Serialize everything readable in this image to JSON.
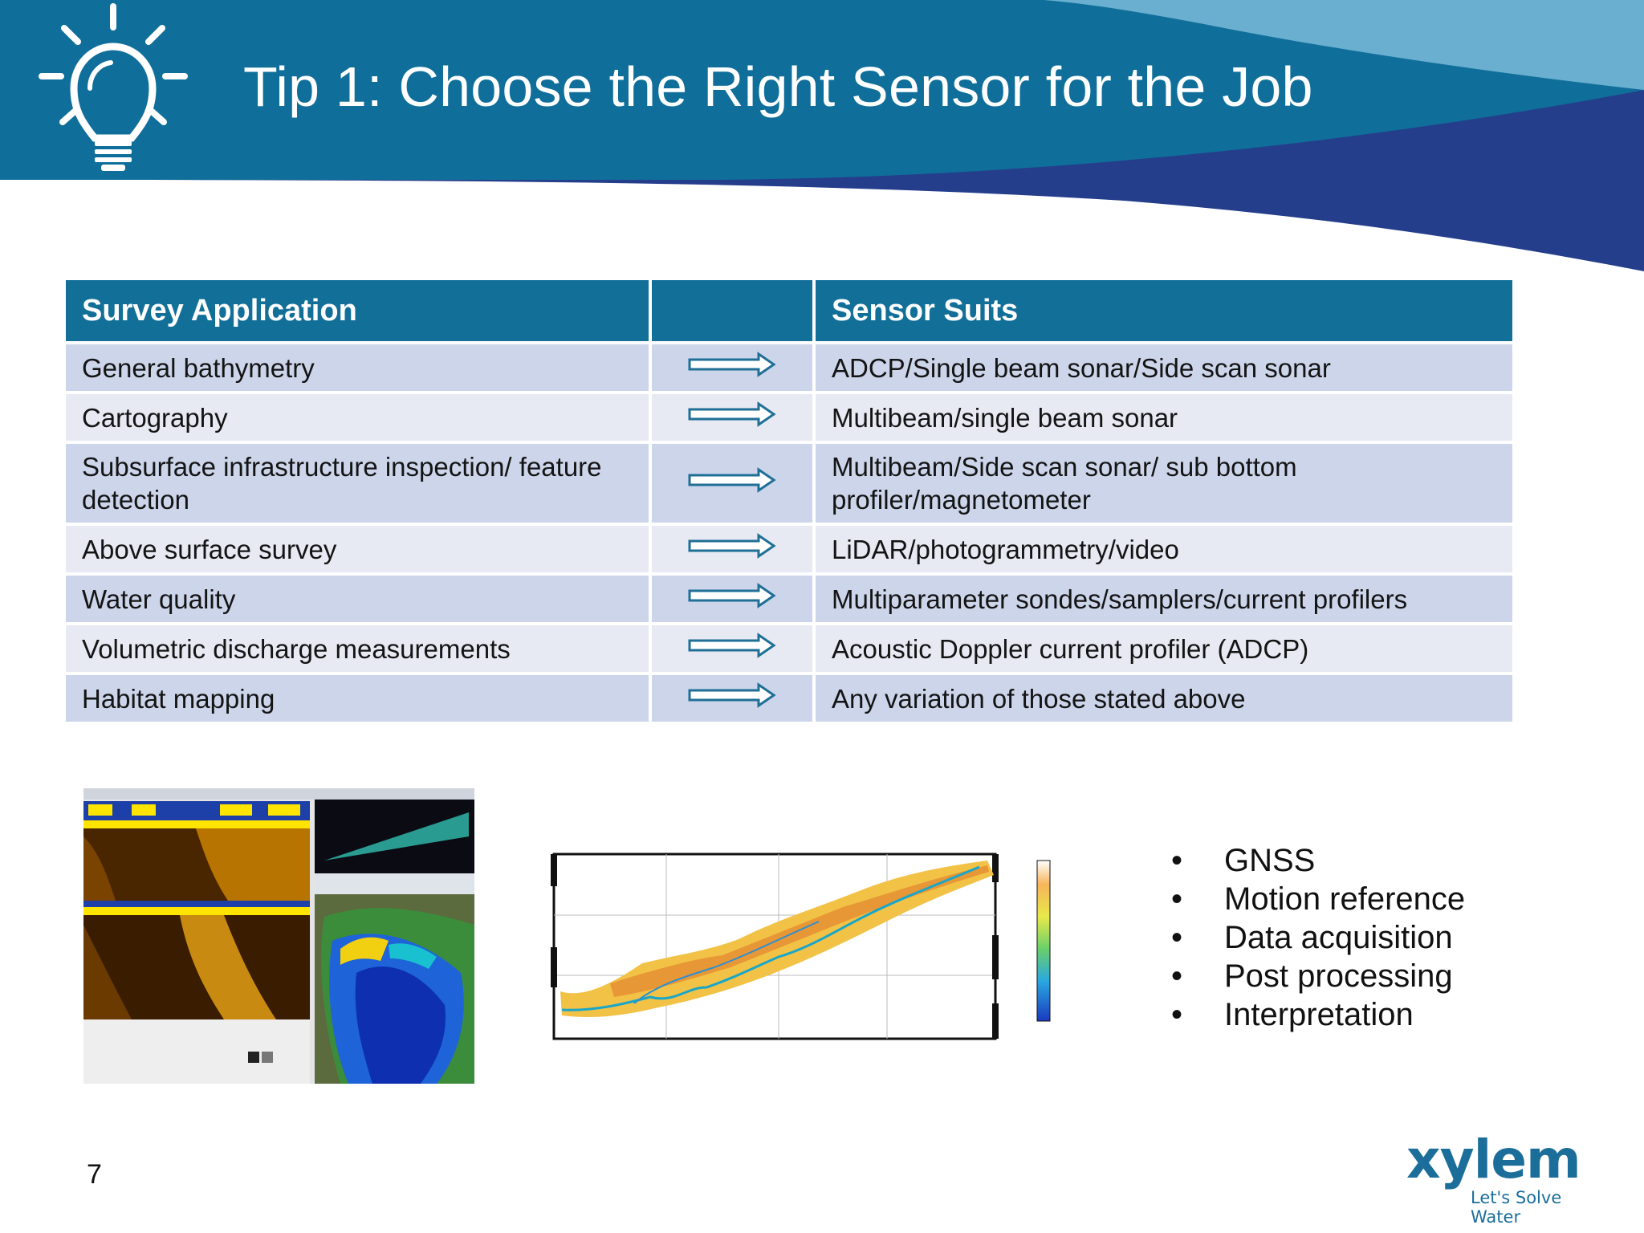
{
  "slide": {
    "title": "Tip 1: Choose the Right Sensor for the Job",
    "page_number": "7",
    "colors": {
      "header_dark": "#0f6f9a",
      "header_light": "#6aaed0",
      "navy_swoosh": "#243e8c",
      "table_header": "#116f98",
      "row_odd": "#ccd5ea",
      "row_even": "#e7eaf3"
    }
  },
  "table": {
    "headers": [
      "Survey Application",
      "",
      "Sensor Suits"
    ],
    "rows": [
      {
        "application": "General bathymetry",
        "sensor": "ADCP/Single beam sonar/Side scan sonar"
      },
      {
        "application": "Cartography",
        "sensor": "Multibeam/single beam sonar"
      },
      {
        "application": "Subsurface infrastructure inspection/ feature detection",
        "sensor": "Multibeam/Side scan sonar/ sub bottom profiler/magnetometer"
      },
      {
        "application": "Above surface survey",
        "sensor": "LiDAR/photogrammetry/video"
      },
      {
        "application": "Water quality",
        "sensor": "Multiparameter sondes/samplers/current profilers"
      },
      {
        "application": "Volumetric discharge measurements",
        "sensor": "Acoustic Doppler current profiler (ADCP)"
      },
      {
        "application": "Habitat mapping",
        "sensor": "Any variation of those stated above"
      }
    ]
  },
  "bullets": [
    "GNSS",
    "Motion reference",
    "Data acquisition",
    "Post processing",
    "Interpretation"
  ],
  "logo": {
    "word": "xylem",
    "tagline": "Let's Solve Water"
  },
  "images": {
    "sonar_screenshot_icon": "sonar-software-screenshot",
    "elevation_map_icon": "river-elevation-map"
  }
}
